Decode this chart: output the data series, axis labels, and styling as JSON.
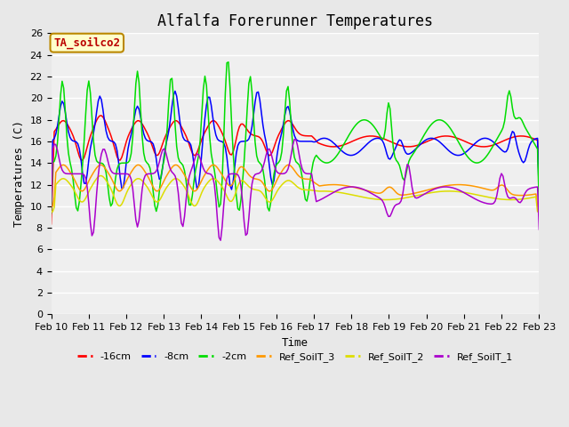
{
  "title": "Alfalfa Forerunner Temperatures",
  "xlabel": "Time",
  "ylabel": "Temperatures (C)",
  "annotation": "TA_soilco2",
  "ylim": [
    0,
    26
  ],
  "yticks": [
    0,
    2,
    4,
    6,
    8,
    10,
    12,
    14,
    16,
    18,
    20,
    22,
    24,
    26
  ],
  "xtick_labels": [
    "Feb 10",
    "Feb 11",
    "Feb 12",
    "Feb 13",
    "Feb 14",
    "Feb 15",
    "Feb 16",
    "Feb 17",
    "Feb 18",
    "Feb 19",
    "Feb 20",
    "Feb 21",
    "Feb 22",
    "Feb 23"
  ],
  "colors": {
    "m16cm": "#ff0000",
    "m8cm": "#0000ff",
    "m2cm": "#00dd00",
    "ref3": "#ff9900",
    "ref2": "#dddd00",
    "ref1": "#aa00cc"
  },
  "legend_labels": [
    "-16cm",
    "-8cm",
    "-2cm",
    "Ref_SoilT_3",
    "Ref_SoilT_2",
    "Ref_SoilT_1"
  ],
  "background_color": "#e8e8e8",
  "plot_bg": "#efefef",
  "title_fontsize": 12,
  "label_fontsize": 9,
  "tick_fontsize": 8
}
